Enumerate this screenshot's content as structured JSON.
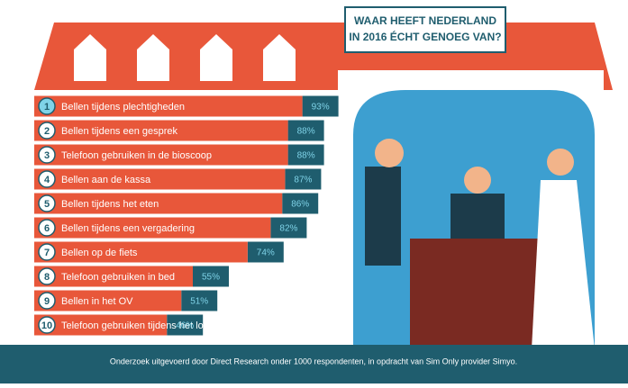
{
  "chart_data": {
    "type": "hbar",
    "title": [
      "WAAR HEEFT NEDERLAND",
      "IN 2016 ÉCHT GENOEG VAN?"
    ],
    "ranks": [
      "1",
      "2",
      "3",
      "4",
      "5",
      "6",
      "7",
      "8",
      "9",
      "10"
    ],
    "categories": [
      "Bellen tijdens plechtigheden",
      "Bellen tijdens een gesprek",
      "Telefoon gebruiken in de bioscoop",
      "Bellen aan de kassa",
      "Bellen tijdens het eten",
      "Bellen tijdens een vergadering",
      "Bellen op de fiets",
      "Telefoon gebruiken in bed",
      "Bellen in het OV",
      "Telefoon gebruiken tijdens het lopen"
    ],
    "values": [
      93,
      88,
      88,
      87,
      86,
      82,
      74,
      55,
      51,
      46
    ],
    "value_labels": [
      "93%",
      "88%",
      "88%",
      "87%",
      "86%",
      "82%",
      "74%",
      "55%",
      "51%",
      "46%"
    ],
    "color": "#e8573a",
    "label_band_color": "#1f5d6e",
    "note": "Onderzoek uitgevoerd door Direct Research onder 1000 respondenten, in opdracht van Sim Only provider Simyo."
  }
}
